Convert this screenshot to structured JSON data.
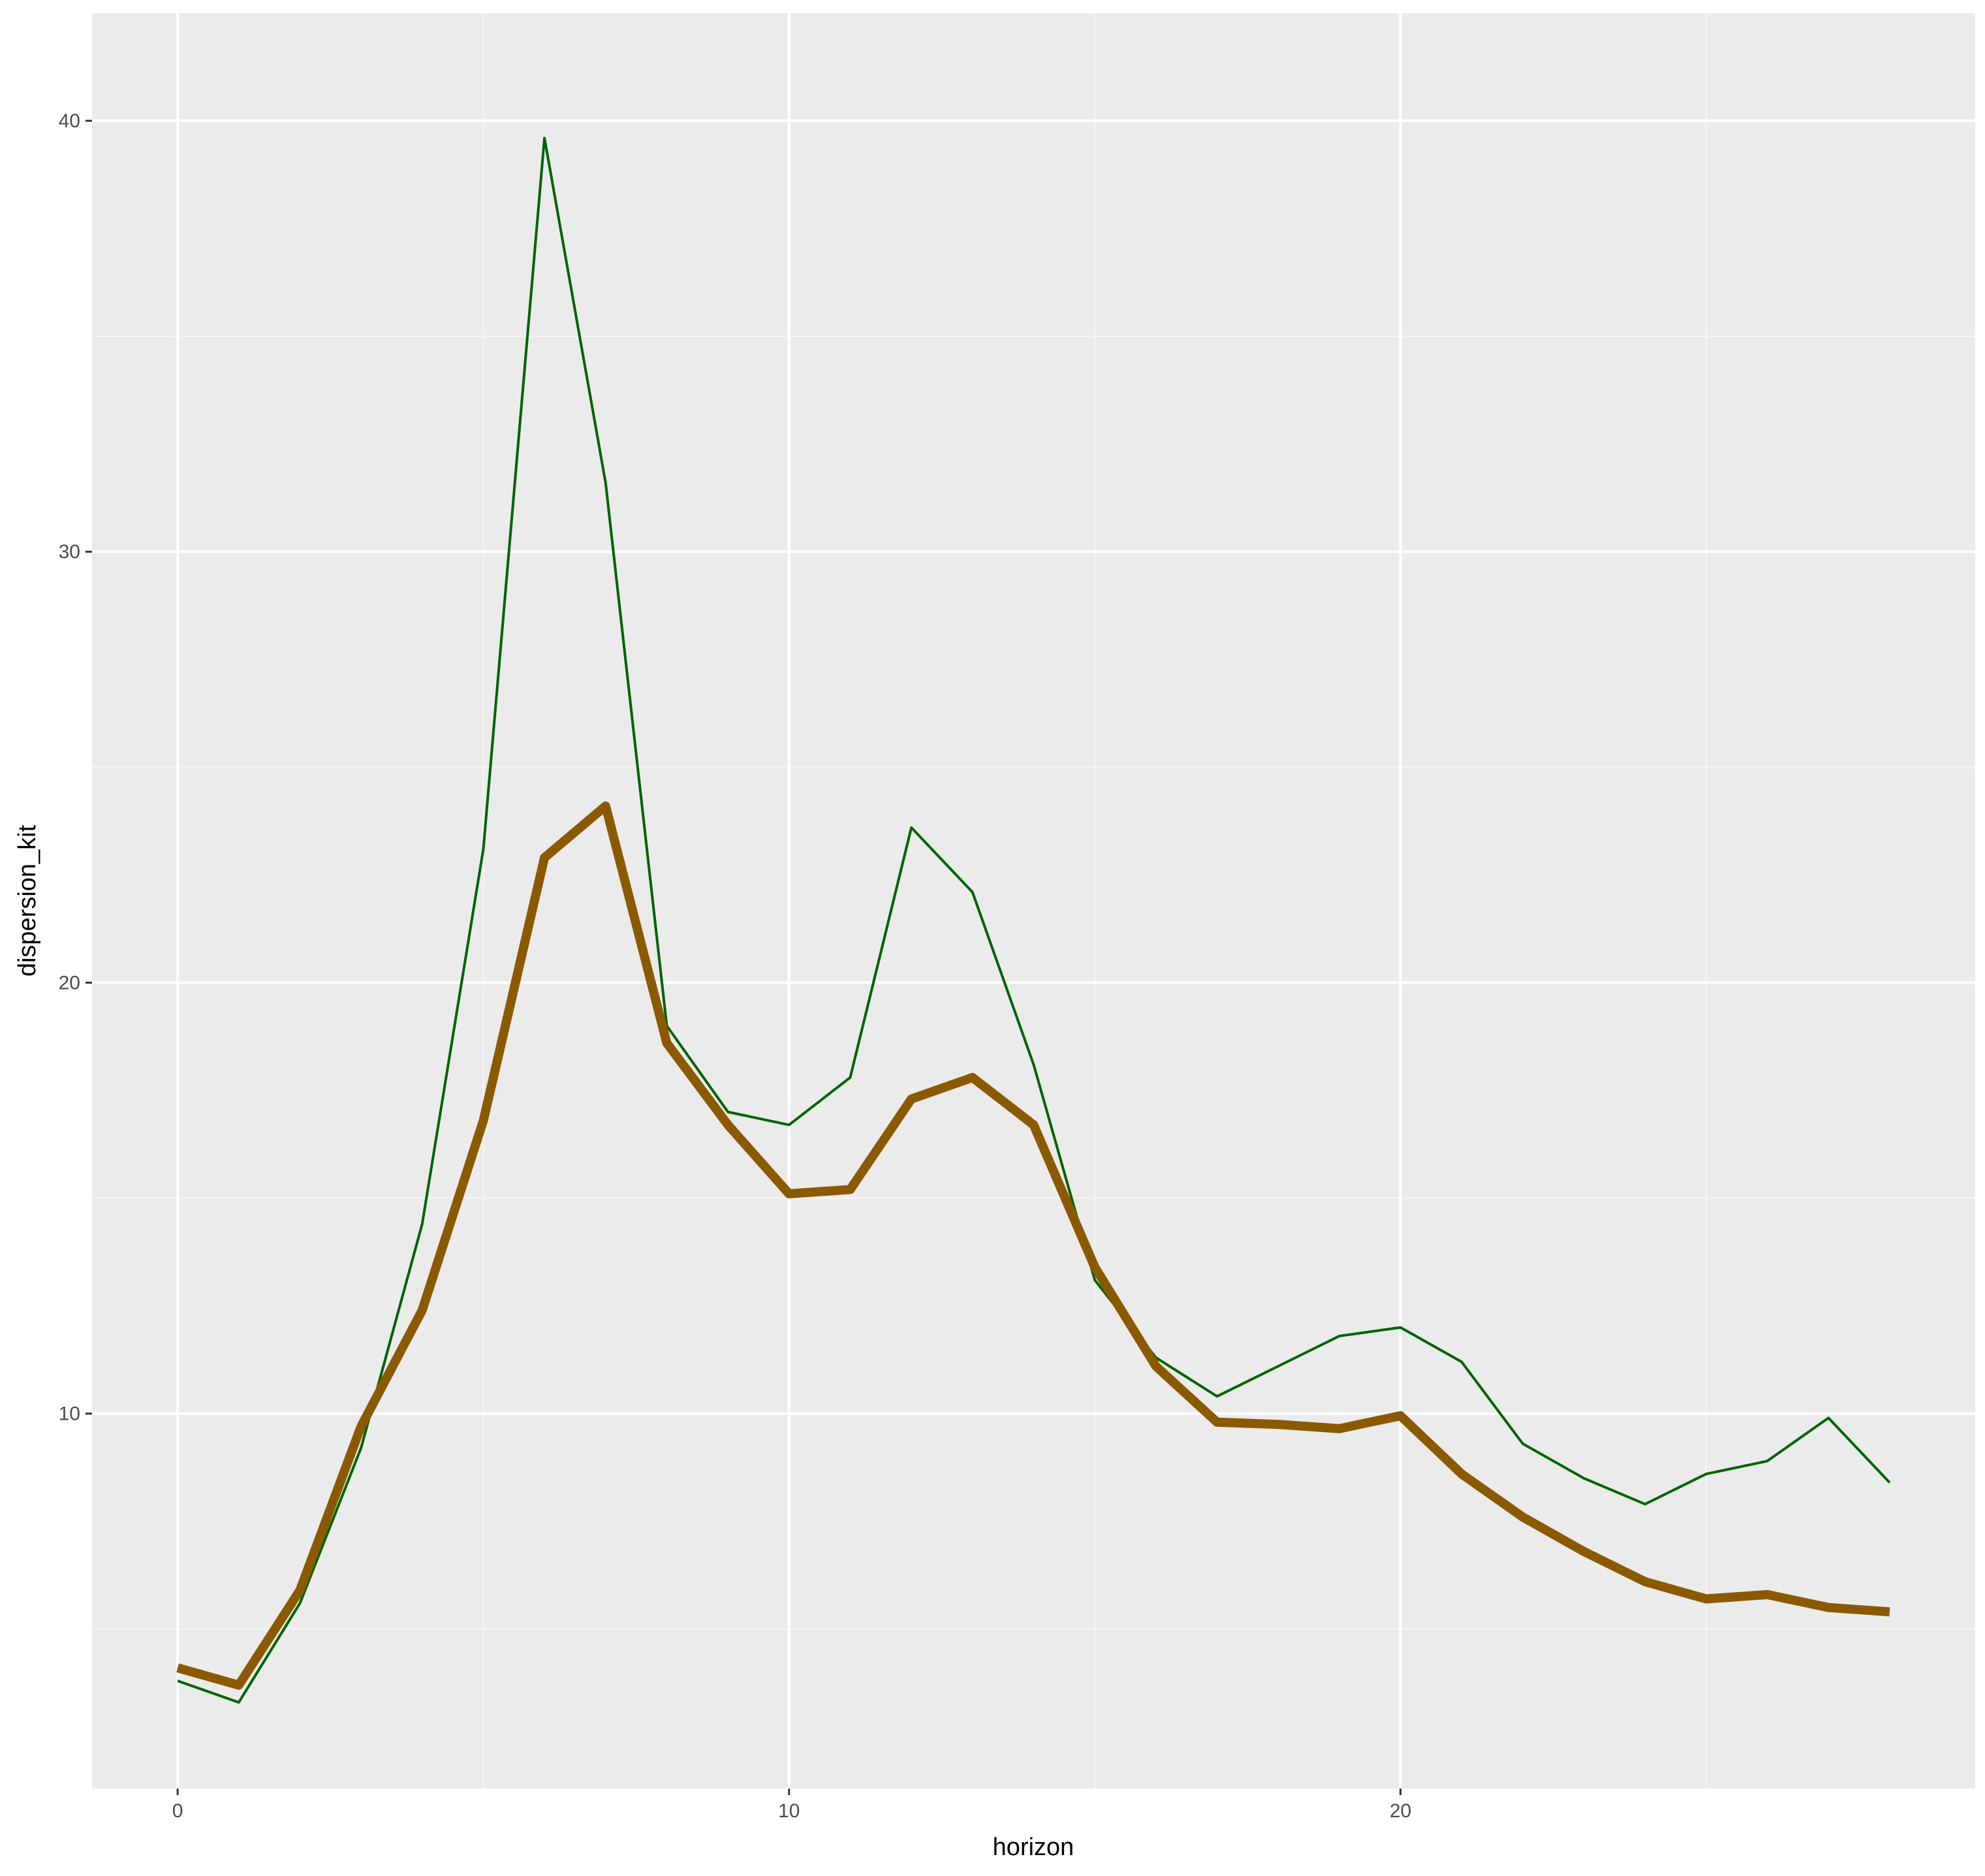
{
  "chart_data": {
    "type": "line",
    "title": "",
    "xlabel": "horizon",
    "ylabel": "dispersion_kit",
    "xlim": [
      -1.4,
      29.4
    ],
    "ylim": [
      1.3,
      42.5
    ],
    "x_ticks": [
      0,
      10,
      20
    ],
    "y_ticks": [
      10,
      20,
      30,
      40
    ],
    "grid": true,
    "legend": "none",
    "colors": {
      "panel_background": "#ebebeb",
      "grid_major": "#ffffff",
      "grid_minor": "#f5f5f5",
      "series_1": "#006400",
      "series_2": "#8b5a00"
    },
    "x": [
      0,
      1,
      2,
      3,
      4,
      5,
      6,
      7,
      8,
      9,
      10,
      11,
      12,
      13,
      14,
      15,
      16,
      17,
      18,
      19,
      20,
      21,
      22,
      23,
      24,
      25,
      26,
      27,
      28
    ],
    "series": [
      {
        "values": [
          3.8,
          3.3,
          5.6,
          9.2,
          14.4,
          23.1,
          39.6,
          31.6,
          19.0,
          17.0,
          16.7,
          17.8,
          23.6,
          22.1,
          18.1,
          13.1,
          11.3,
          10.4,
          11.1,
          11.8,
          12.0,
          11.2,
          9.3,
          8.5,
          7.9,
          8.6,
          8.9,
          9.9,
          8.4
        ],
        "line_width": 4
      },
      {
        "values": [
          4.1,
          3.7,
          5.9,
          9.7,
          12.4,
          16.8,
          22.9,
          24.1,
          18.6,
          16.7,
          15.1,
          15.2,
          17.3,
          17.8,
          16.7,
          13.4,
          11.1,
          9.8,
          9.75,
          9.65,
          9.95,
          8.6,
          7.6,
          6.8,
          6.1,
          5.7,
          5.8,
          5.5,
          5.4
        ],
        "line_width": 14
      }
    ]
  }
}
